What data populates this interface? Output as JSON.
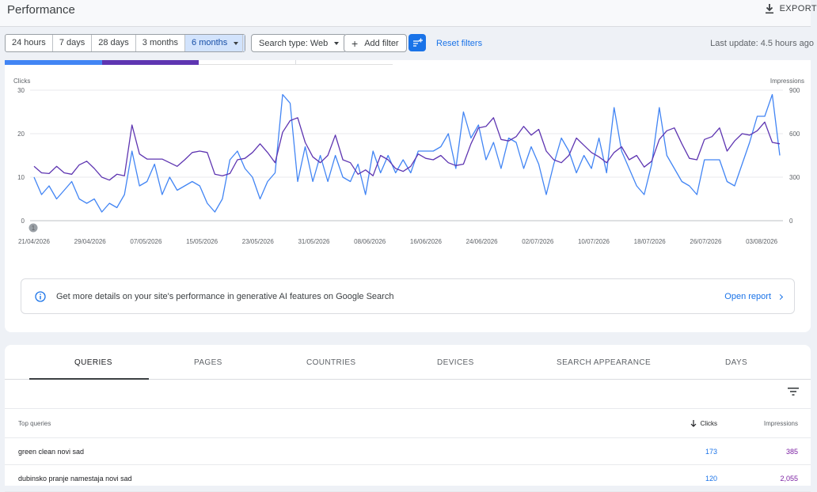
{
  "header": {
    "title": "Performance",
    "export_label": "EXPORT"
  },
  "filters": {
    "date_ranges": [
      "24 hours",
      "7 days",
      "28 days",
      "3 months",
      "6 months"
    ],
    "active_range": "6 months",
    "search_type": "Search type: Web",
    "add_filter": "Add filter",
    "reset": "Reset filters",
    "last_update": "Last update: 4.5 hours ago"
  },
  "chart_data": {
    "type": "line",
    "left_axis_label": "Clicks",
    "right_axis_label": "Impressions",
    "left_ticks": [
      "30",
      "20",
      "10",
      "0"
    ],
    "right_ticks": [
      "900",
      "600",
      "300",
      "0"
    ],
    "ylim_left": [
      0,
      30
    ],
    "ylim_right": [
      0,
      900
    ],
    "annotation": "1",
    "x_tick_labels": [
      "21/04/2026",
      "29/04/2026",
      "07/05/2026",
      "15/05/2026",
      "23/05/2026",
      "31/05/2026",
      "08/06/2026",
      "16/06/2026",
      "24/06/2026",
      "02/07/2026",
      "10/07/2026",
      "18/07/2026",
      "26/07/2026",
      "03/08/2026"
    ],
    "series": [
      {
        "name": "Clicks",
        "color": "#4285f4",
        "axis": "left",
        "values": [
          10,
          6,
          8,
          5,
          7,
          9,
          5,
          4,
          5,
          2,
          4,
          3,
          6,
          16,
          8,
          9,
          13,
          6,
          10,
          7,
          8,
          9,
          8,
          4,
          2,
          5,
          14,
          16,
          12,
          10,
          5,
          9,
          11,
          29,
          27,
          9,
          17,
          9,
          15,
          9,
          15,
          10,
          9,
          13,
          6,
          16,
          11,
          15,
          11,
          14,
          11,
          16,
          16,
          16,
          17,
          20,
          12,
          25,
          19,
          22,
          14,
          18,
          12,
          19,
          18,
          12,
          17,
          13,
          6,
          13,
          19,
          16,
          11,
          15,
          12,
          19,
          11,
          26,
          16,
          12,
          8,
          6,
          13,
          26,
          15,
          12,
          9,
          8,
          6,
          14,
          14,
          14,
          9,
          8,
          13,
          18,
          24,
          24,
          29,
          15
        ]
      },
      {
        "name": "Impressions",
        "color": "#5e35b1",
        "axis": "right",
        "values": [
          375,
          330,
          325,
          375,
          330,
          320,
          385,
          410,
          360,
          300,
          280,
          320,
          310,
          660,
          460,
          425,
          425,
          425,
          400,
          375,
          420,
          470,
          480,
          470,
          320,
          310,
          325,
          420,
          430,
          470,
          530,
          470,
          400,
          610,
          690,
          710,
          540,
          440,
          400,
          450,
          590,
          420,
          400,
          320,
          350,
          310,
          450,
          420,
          360,
          340,
          375,
          460,
          430,
          420,
          450,
          400,
          380,
          390,
          530,
          640,
          650,
          710,
          560,
          550,
          580,
          650,
          590,
          630,
          480,
          420,
          400,
          450,
          570,
          520,
          470,
          440,
          400,
          470,
          510,
          420,
          450,
          370,
          410,
          560,
          620,
          640,
          530,
          430,
          420,
          560,
          580,
          640,
          480,
          550,
          600,
          590,
          620,
          680,
          540,
          530
        ]
      }
    ]
  },
  "banner": {
    "message": "Get more details on your site's performance in generative AI features on Google Search",
    "link": "Open report"
  },
  "table": {
    "tabs": [
      "QUERIES",
      "PAGES",
      "COUNTRIES",
      "DEVICES",
      "SEARCH APPEARANCE",
      "DAYS"
    ],
    "active_tab": "QUERIES",
    "headers": {
      "query": "Top queries",
      "clicks": "Clicks",
      "impressions": "Impressions"
    },
    "rows": [
      {
        "query": "green clean novi sad",
        "clicks": "173",
        "impressions": "385"
      },
      {
        "query": "dubinsko pranje namestaja novi sad",
        "clicks": "120",
        "impressions": "2,055"
      }
    ]
  }
}
